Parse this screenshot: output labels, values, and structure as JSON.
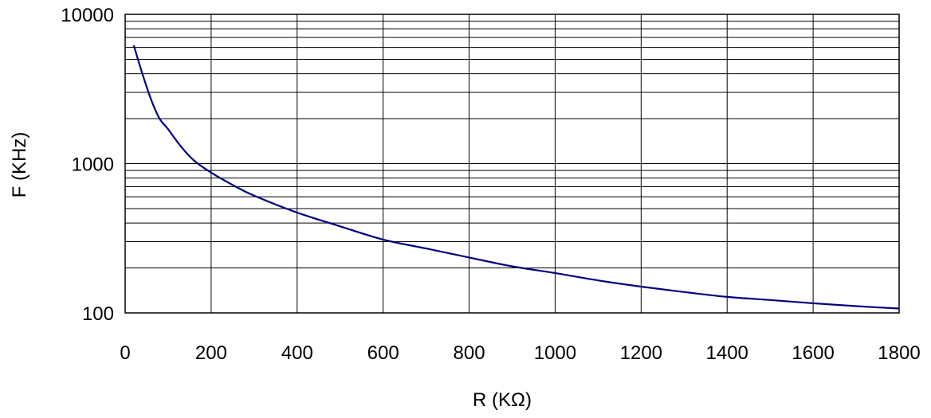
{
  "chart_data": {
    "type": "line",
    "title": "",
    "xlabel": "R (KΩ)",
    "ylabel": "F (KHz)",
    "xlim": [
      0,
      1800
    ],
    "ylim": [
      100,
      10000
    ],
    "y_scale": "log",
    "grid": true,
    "x_ticks": [
      "0",
      "200",
      "400",
      "600",
      "800",
      "1000",
      "1200",
      "1400",
      "1600",
      "1800"
    ],
    "y_ticks": [
      "100",
      "1000",
      "10000"
    ],
    "colors": {
      "line": "#000080",
      "grid": "#000000",
      "frame": "#000000"
    },
    "series": [
      {
        "x": [
          20,
          40,
          60,
          80,
          100,
          130,
          160,
          200,
          250,
          300,
          400,
          500,
          600,
          700,
          800,
          900,
          1000,
          1100,
          1200,
          1300,
          1400,
          1500,
          1600,
          1700,
          1800
        ],
        "y": [
          6200,
          4000,
          2700,
          2000,
          1700,
          1300,
          1050,
          870,
          720,
          610,
          470,
          380,
          310,
          270,
          235,
          205,
          185,
          165,
          150,
          138,
          128,
          122,
          116,
          111,
          107
        ]
      }
    ]
  }
}
